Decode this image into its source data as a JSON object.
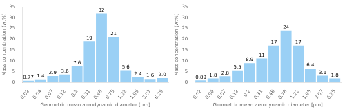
{
  "chart_data": [
    {
      "type": "bar",
      "categories": [
        "0.02",
        "0.04",
        "0.07",
        "0.12",
        "0.2",
        "0.31",
        "0.48",
        "0.78",
        "1.22",
        "1.95",
        "3.07",
        "6.25"
      ],
      "values": [
        0.77,
        1.4,
        2.9,
        3.6,
        7.6,
        19,
        32,
        21,
        5.6,
        2.4,
        1.6,
        2.0
      ],
      "value_labels": [
        "0.77",
        "1.4",
        "2.9",
        "3.6",
        "7.6",
        "19",
        "32",
        "21",
        "5.6",
        "2.4",
        "1.6",
        "2.0"
      ],
      "data_labels": true,
      "ylabel": "Mass concentration (wt%)",
      "xlabel": "Geometric mean aerodynamic diameter [μm]",
      "ylim": [
        0,
        35
      ],
      "yticks": [
        0,
        5,
        10,
        15,
        20,
        25,
        30,
        35
      ],
      "grid": false
    },
    {
      "type": "bar",
      "categories": [
        "0.02",
        "0.04",
        "0.07",
        "0.12",
        "0.2",
        "0.31",
        "0.48",
        "0.78",
        "1.22",
        "1.95",
        "3.07",
        "6.25"
      ],
      "values": [
        0.89,
        1.8,
        2.8,
        5.5,
        8.9,
        11,
        17,
        24,
        17,
        6.4,
        3.1,
        1.8
      ],
      "data_labels": true,
      "ylabel": "Mass concentration (wt%)",
      "xlabel": "Geometric mean aerodynamic diameter [μm]",
      "ylim": [
        0,
        35
      ],
      "yticks": [
        0,
        5,
        10,
        15,
        20,
        25,
        30,
        35
      ],
      "grid": false
    }
  ]
}
